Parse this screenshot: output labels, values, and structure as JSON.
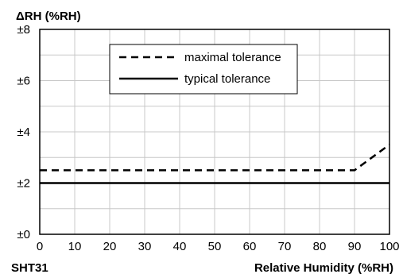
{
  "chart_data": {
    "type": "line",
    "title": "",
    "xlabel": "Relative Humidity (%RH)",
    "ylabel": "ΔRH (%RH)",
    "sensor_label": "SHT31",
    "xlim": [
      0,
      100
    ],
    "ylim": [
      0,
      8
    ],
    "x_ticks": [
      0,
      10,
      20,
      30,
      40,
      50,
      60,
      70,
      80,
      90,
      100
    ],
    "x_tick_labels": [
      "0",
      "10",
      "20",
      "30",
      "40",
      "50",
      "60",
      "70",
      "80",
      "90",
      "100"
    ],
    "y_ticks": [
      0,
      2,
      4,
      6,
      8
    ],
    "y_tick_labels": [
      "±0",
      "±2",
      "±4",
      "±6",
      "±8"
    ],
    "grid": true,
    "legend_placement": "top-center",
    "series": [
      {
        "name": "maximal tolerance",
        "style": "dashed",
        "color": "#000000",
        "x": [
          0,
          90,
          100
        ],
        "y": [
          2.5,
          2.5,
          3.5
        ]
      },
      {
        "name": "typical tolerance",
        "style": "solid",
        "color": "#000000",
        "x": [
          0,
          100
        ],
        "y": [
          2,
          2
        ]
      }
    ]
  }
}
